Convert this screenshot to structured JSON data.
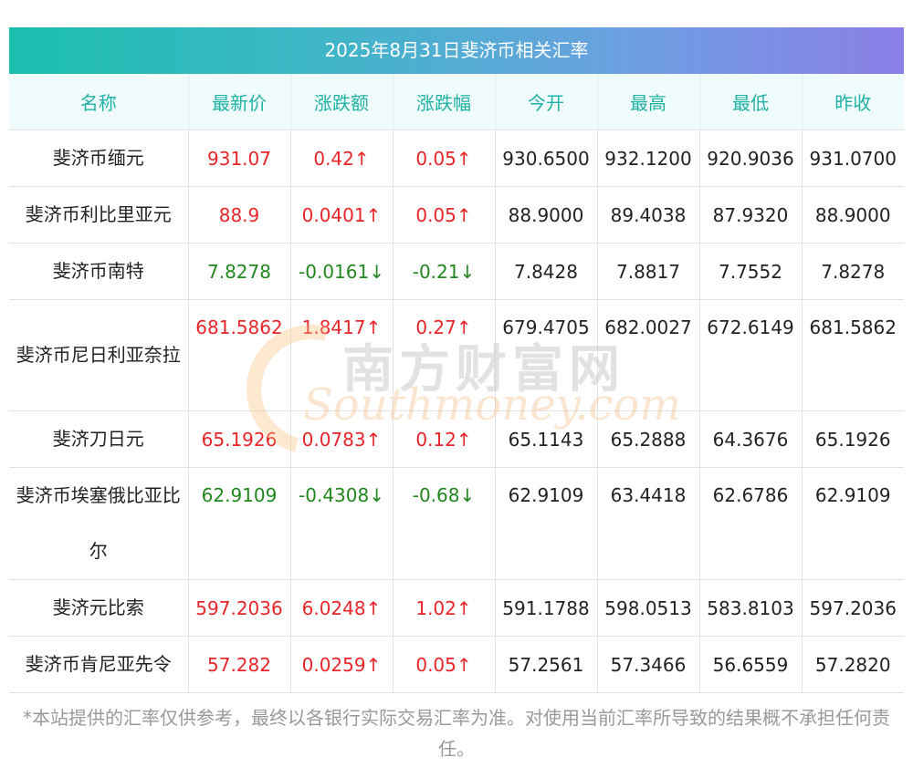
{
  "title": "2025年8月31日斐济币相关汇率",
  "headers": [
    "名称",
    "最新价",
    "涨跌额",
    "涨跌幅",
    "今开",
    "最高",
    "最低",
    "昨收"
  ],
  "rows": [
    {
      "name": "斐济币缅元",
      "latest": "931.07",
      "change": "0.42↑",
      "pct": "0.05↑",
      "open": "930.6500",
      "high": "932.1200",
      "low": "920.9036",
      "prev": "931.0700",
      "dir": "up"
    },
    {
      "name": "斐济币利比里亚元",
      "latest": "88.9",
      "change": "0.0401↑",
      "pct": "0.05↑",
      "open": "88.9000",
      "high": "89.4038",
      "low": "87.9320",
      "prev": "88.9000",
      "dir": "up"
    },
    {
      "name": "斐济币南特",
      "latest": "7.8278",
      "change": "-0.0161↓",
      "pct": "-0.21↓",
      "open": "7.8428",
      "high": "7.8817",
      "low": "7.7552",
      "prev": "7.8278",
      "dir": "down"
    },
    {
      "name": "斐济币尼日利亚奈拉",
      "latest": "681.5862",
      "change": "1.8417↑",
      "pct": "0.27↑",
      "open": "679.4705",
      "high": "682.0027",
      "low": "672.6149",
      "prev": "681.5862",
      "dir": "up"
    },
    {
      "name": "斐济刀日元",
      "latest": "65.1926",
      "change": "0.0783↑",
      "pct": "0.12↑",
      "open": "65.1143",
      "high": "65.2888",
      "low": "64.3676",
      "prev": "65.1926",
      "dir": "up"
    },
    {
      "name": "斐济币埃塞俄比亚比尔",
      "latest": "62.9109",
      "change": "-0.4308↓",
      "pct": "-0.68↓",
      "open": "62.9109",
      "high": "63.4418",
      "low": "62.6786",
      "prev": "62.9109",
      "dir": "down"
    },
    {
      "name": "斐济元比索",
      "latest": "597.2036",
      "change": "6.0248↑",
      "pct": "1.02↑",
      "open": "591.1788",
      "high": "598.0513",
      "low": "583.8103",
      "prev": "597.2036",
      "dir": "up"
    },
    {
      "name": "斐济币肯尼亚先令",
      "latest": "57.282",
      "change": "0.0259↑",
      "pct": "0.05↑",
      "open": "57.2561",
      "high": "57.3466",
      "low": "56.6559",
      "prev": "57.2820",
      "dir": "up"
    }
  ],
  "watermark": {
    "cn": "南方财富网",
    "en": "Southmoney.com"
  },
  "footer": "*本站提供的汇率仅供参考，最终以各银行实际交易汇率为准。对使用当前汇率所导致的结果概不承担任何责任。",
  "colors": {
    "up": "#e8262a",
    "down": "#23871f",
    "header_text": "#1fb1a3"
  }
}
